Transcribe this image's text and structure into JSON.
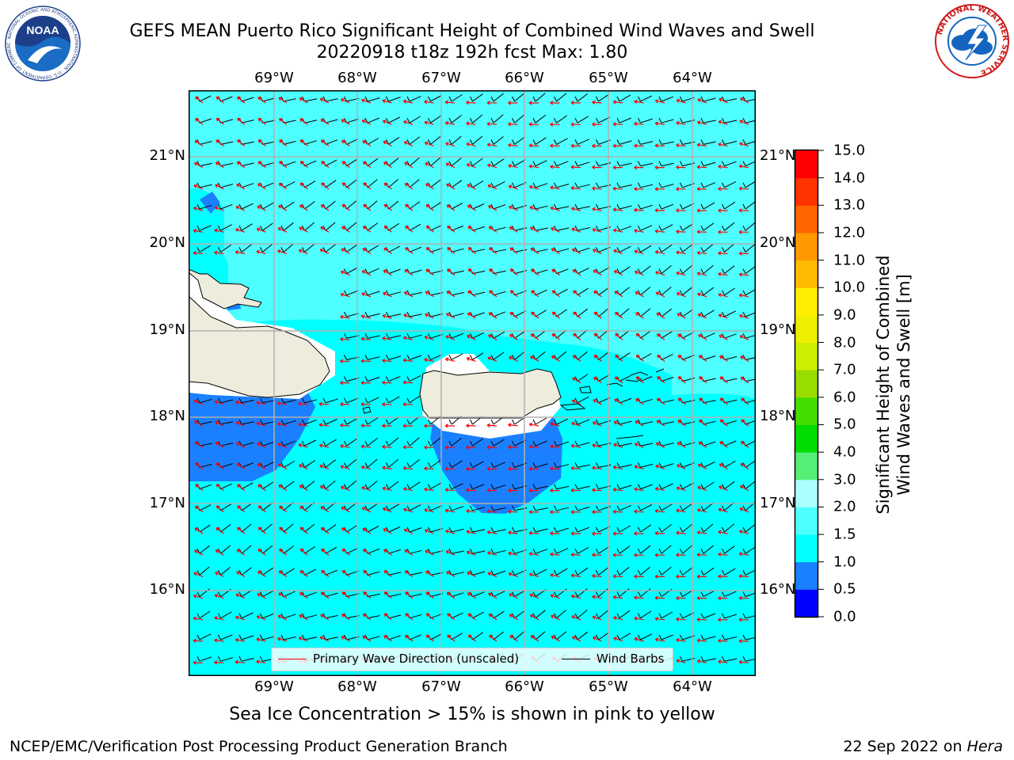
{
  "header": {
    "title_line_1": "GEFS MEAN Puerto Rico Significant Height of Combined Wind Waves and Swell",
    "title_line_2": "20220918 t18z 192h fcst   Max: 1.80"
  },
  "logos": {
    "noaa": {
      "text": "NOAA",
      "ring_text": "NATIONAL OCEANIC AND ATMOSPHERIC ADMINISTRATION · U.S. DEPARTMENT OF COMMERCE"
    },
    "nws": {
      "ring_text": "NATIONAL WEATHER SERVICE"
    }
  },
  "map": {
    "lat_labels": [
      "21°N",
      "20°N",
      "19°N",
      "18°N",
      "17°N",
      "16°N"
    ],
    "lon_labels": [
      "69°W",
      "68°W",
      "67°W",
      "66°W",
      "65°W",
      "64°W"
    ],
    "colors": {
      "land": "#eeecdd",
      "level_1_1p5": "#00ffff",
      "level_1p5_2": "#4dffff",
      "level_0p5_1": "#1a80ff",
      "level_0_0p5": "#0000ff"
    },
    "legend": {
      "primary_label": "Primary Wave Direction (unscaled)",
      "barb_label": "Wind Barbs"
    }
  },
  "colorbar": {
    "label": "Significant Height of Combined\nWind Waves and Swell [m]",
    "ticks": [
      "0.0",
      "0.5",
      "1.0",
      "1.5",
      "2.0",
      "3.0",
      "4.0",
      "5.0",
      "6.0",
      "7.0",
      "8.0",
      "9.0",
      "10.0",
      "11.0",
      "12.0",
      "13.0",
      "14.0",
      "15.0"
    ],
    "colors": [
      "#0000ff",
      "#1a80ff",
      "#00ffff",
      "#4dffff",
      "#aaffff",
      "#55ee77",
      "#00dd00",
      "#44dd00",
      "#99dd00",
      "#ccee00",
      "#eeee00",
      "#ffee00",
      "#ffbb00",
      "#ff9900",
      "#ff6600",
      "#ff3300",
      "#ff0000"
    ]
  },
  "notes": {
    "sea_ice": "Sea Ice Concentration > 15% is shown in pink to yellow"
  },
  "footer": {
    "left": "NCEP/EMC/Verification Post Processing Product Generation Branch",
    "date": "22 Sep 2022 on",
    "machine": "Hera"
  }
}
